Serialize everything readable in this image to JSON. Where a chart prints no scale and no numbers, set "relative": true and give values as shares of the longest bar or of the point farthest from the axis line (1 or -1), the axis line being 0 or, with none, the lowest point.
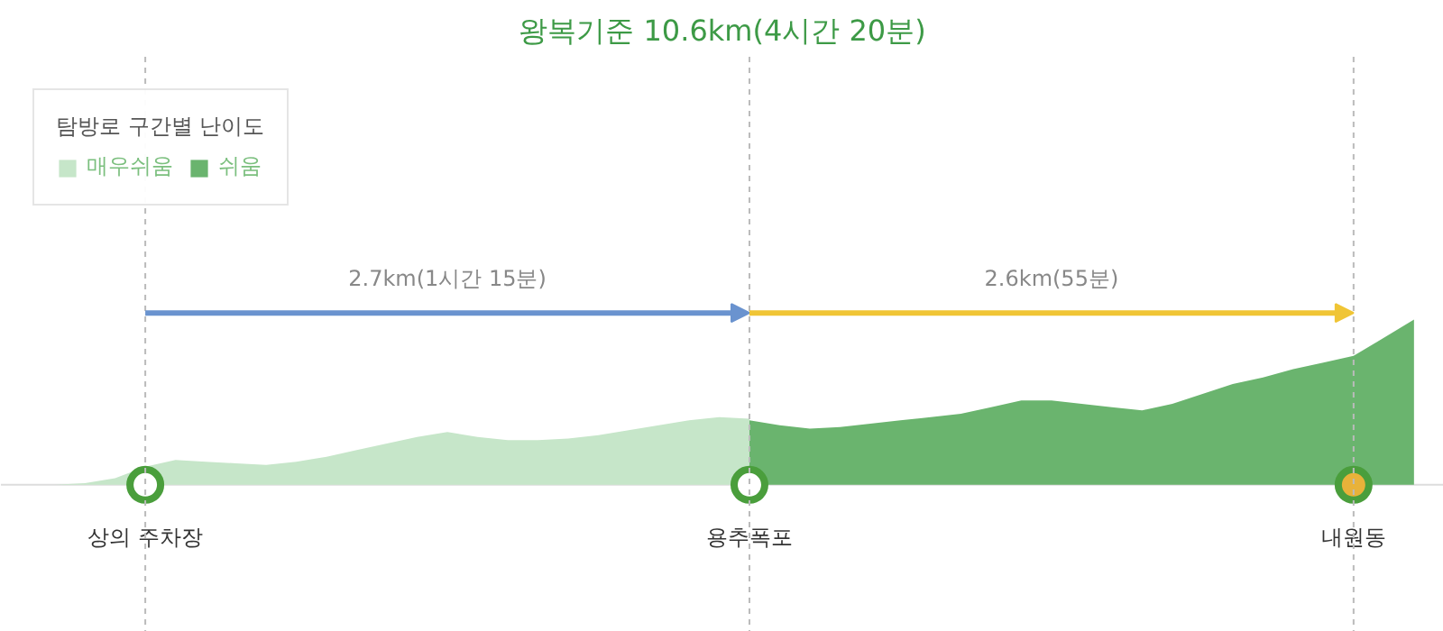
{
  "chart_data": {
    "type": "area",
    "title": "왕복기준 10.6km(4시간 20분)",
    "relative": true,
    "legend_title": "탐방로 구간별 난이도",
    "legend": "top left",
    "categories": [
      null,
      null,
      null,
      "상의 주차장",
      null,
      null,
      null,
      null,
      null,
      null,
      null,
      null,
      null,
      null,
      null,
      null,
      null,
      null,
      null,
      null,
      null,
      null,
      null,
      "용추폭포",
      null,
      null,
      null,
      null,
      null,
      null,
      null,
      null,
      null,
      null,
      null,
      null,
      null,
      null,
      null,
      null,
      null,
      null,
      null,
      "내원동",
      null,
      null
    ],
    "series": [
      {
        "name": "매우쉬움",
        "color": "#c6e6c9",
        "values": [
          0,
          0.01,
          0.04,
          0.11,
          0.15,
          0.14,
          0.13,
          0.12,
          0.14,
          0.17,
          0.21,
          0.25,
          0.29,
          0.32,
          0.29,
          0.27,
          0.27,
          0.28,
          0.3,
          0.33,
          0.36,
          0.39,
          0.41,
          0.4,
          null,
          null,
          null,
          null,
          null,
          null,
          null,
          null,
          null,
          null,
          null,
          null,
          null,
          null,
          null,
          null,
          null,
          null,
          null,
          null,
          null,
          null
        ]
      },
      {
        "name": "쉬움",
        "color": "#6ab46e",
        "values": [
          null,
          null,
          null,
          null,
          null,
          null,
          null,
          null,
          null,
          null,
          null,
          null,
          null,
          null,
          null,
          null,
          null,
          null,
          null,
          null,
          null,
          null,
          null,
          0.39,
          0.36,
          0.34,
          0.35,
          0.37,
          0.39,
          0.41,
          0.43,
          0.47,
          0.51,
          0.51,
          0.49,
          0.47,
          0.45,
          0.49,
          0.55,
          0.61,
          0.65,
          0.7,
          0.74,
          0.78,
          0.89,
          1
        ]
      },
      {
        "type": "scatter",
        "x": [
          "상의 주차장",
          "용추폭포",
          "내원동"
        ],
        "values": [
          0,
          0,
          0
        ],
        "colors": [
          "#ffffff",
          "#ffffff",
          "#e8b23a"
        ],
        "marker": "circle"
      }
    ],
    "annotations": [
      "2.7km(1시간 15분)",
      "2.6km(55분)"
    ],
    "ref_lines": [
      {
        "axis": "x",
        "value": "상의 주차장",
        "color": "#bbbbbb",
        "line_style": "dashed"
      },
      {
        "axis": "x",
        "value": "용추폭포",
        "color": "#bbbbbb",
        "line_style": "dashed"
      },
      {
        "axis": "x",
        "value": "내원동",
        "color": "#bbbbbb",
        "line_style": "dashed"
      }
    ]
  }
}
